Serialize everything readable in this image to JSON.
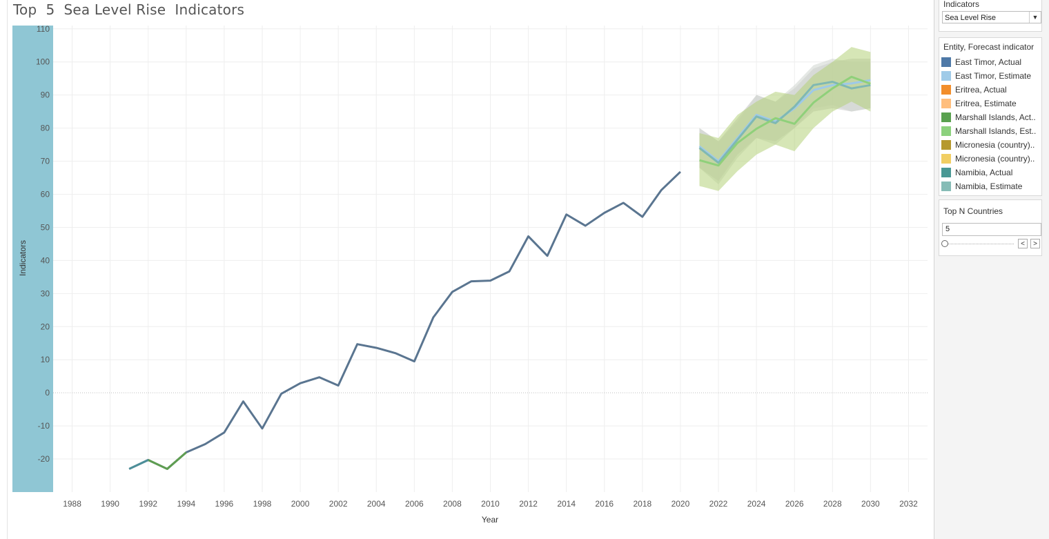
{
  "title": "Top  5  Sea Level Rise  Indicators",
  "chart_data": {
    "type": "line",
    "xlabel": "Year",
    "ylabel": "Indicators",
    "xlim": [
      1987,
      2033
    ],
    "ylim": [
      -30,
      111
    ],
    "x_ticks": [
      1988,
      1990,
      1992,
      1994,
      1996,
      1998,
      2000,
      2002,
      2004,
      2006,
      2008,
      2010,
      2012,
      2014,
      2016,
      2018,
      2020,
      2022,
      2024,
      2026,
      2028,
      2030,
      2032
    ],
    "y_ticks": [
      -20,
      -10,
      0,
      10,
      20,
      30,
      40,
      50,
      60,
      70,
      80,
      90,
      100,
      110
    ],
    "grid": true,
    "legend_position": "right",
    "actual": {
      "x": [
        1991,
        1992,
        1993,
        1994,
        1995,
        1996,
        1997,
        1998,
        1999,
        2000,
        2001,
        2002,
        2003,
        2004,
        2005,
        2006,
        2007,
        2008,
        2009,
        2010,
        2011,
        2012,
        2013,
        2014,
        2015,
        2016,
        2017,
        2018,
        2019,
        2020
      ],
      "y": [
        -23,
        -20.3,
        -23,
        -18,
        -15.5,
        -12,
        -2.6,
        -10.8,
        -0.3,
        2.9,
        4.7,
        2.2,
        14.7,
        13.6,
        12,
        9.5,
        22.8,
        30.5,
        33.7,
        33.9,
        36.7,
        47.3,
        41.4,
        53.9,
        50.5,
        54.4,
        57.4,
        53.2,
        61.3,
        66.8
      ],
      "color": "#5a7590",
      "highlight": {
        "x": [
          1992,
          1993,
          1994
        ],
        "color": "#5f9e51"
      }
    },
    "estimates": {
      "x": [
        2021,
        2022,
        2023,
        2024,
        2025,
        2026,
        2027,
        2028,
        2029,
        2030
      ],
      "series": [
        {
          "name": "East Timor, Estimate",
          "color": "#9ec9e8",
          "values": [
            74.5,
            70,
            77,
            84,
            82,
            86,
            91.5,
            93,
            93.5,
            94.5
          ],
          "band_low": [
            68,
            64,
            72,
            77,
            76,
            80,
            85,
            86,
            85,
            86
          ],
          "band_high": [
            80,
            76,
            83,
            90,
            88,
            92,
            98,
            100,
            101,
            101
          ],
          "band_color": "#c8c8c8"
        },
        {
          "name": "Namibia, Estimate",
          "color": "#7fb8b3",
          "values": [
            74,
            69.5,
            76.5,
            83.5,
            81.5,
            86.5,
            93,
            94,
            92,
            93
          ],
          "band_low": [
            68,
            63,
            71,
            77,
            75,
            80,
            86,
            87,
            85,
            86
          ],
          "band_high": [
            80,
            76,
            82,
            90,
            88,
            93,
            99,
            101,
            100,
            100
          ],
          "band_color": "#cfd6cf"
        },
        {
          "name": "Marshall Islands, Estimate",
          "color": "#8fd07a",
          "values": [
            70.3,
            68.7,
            75.5,
            79.8,
            83,
            81.3,
            87.7,
            92,
            95.5,
            93.4
          ],
          "band_low": [
            62.5,
            61,
            67,
            72,
            75,
            73,
            80,
            85,
            88,
            85
          ],
          "band_high": [
            78.5,
            77,
            84,
            88,
            91,
            90,
            96,
            100,
            104.5,
            103
          ],
          "band_color": "#b5d27a"
        }
      ]
    }
  },
  "filters": {
    "indicators_label": "Indicators",
    "indicators_value": "Sea Level Rise",
    "legend_title": "Entity, Forecast indicator",
    "legend_items": [
      {
        "label": "East Timor, Actual",
        "color": "#4e79a7"
      },
      {
        "label": "East Timor, Estimate",
        "color": "#a0cbe8"
      },
      {
        "label": "Eritrea, Actual",
        "color": "#f28e2b"
      },
      {
        "label": "Eritrea, Estimate",
        "color": "#ffbe7d"
      },
      {
        "label": "Marshall Islands, Act..",
        "color": "#59a14f"
      },
      {
        "label": "Marshall Islands, Est..",
        "color": "#8cd17d"
      },
      {
        "label": "Micronesia (country)..",
        "color": "#b6992d"
      },
      {
        "label": "Micronesia (country)..",
        "color": "#f1ce63"
      },
      {
        "label": "Namibia, Actual",
        "color": "#499894"
      },
      {
        "label": "Namibia, Estimate",
        "color": "#86bcb6"
      }
    ],
    "topn_label": "Top N Countries",
    "topn_value": "5"
  },
  "colors": {
    "axis_band": "#8fc6d4",
    "grid": "#eeeeee"
  }
}
